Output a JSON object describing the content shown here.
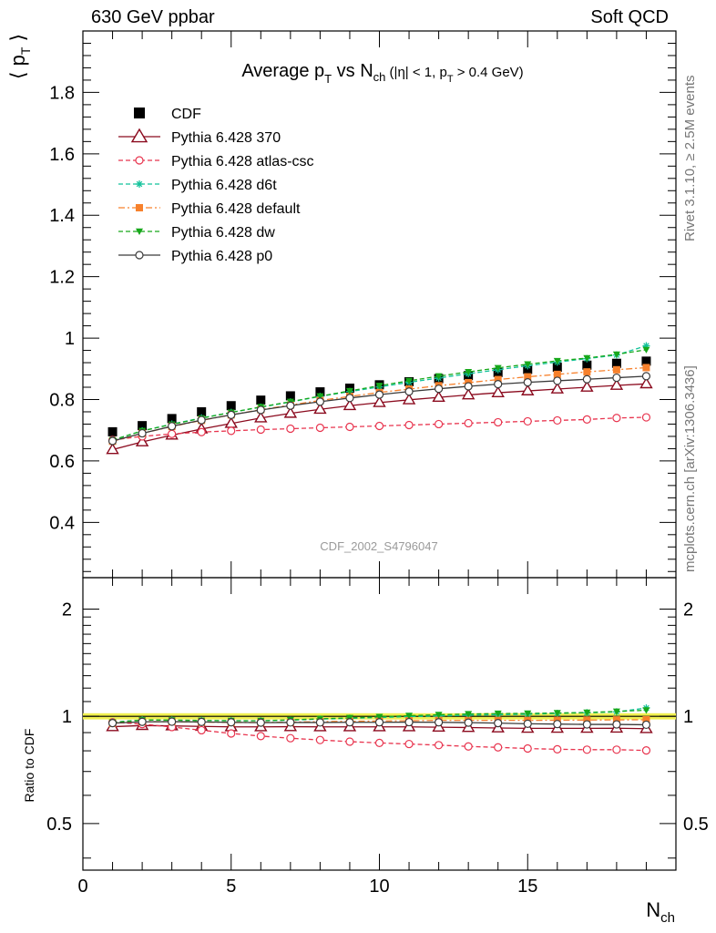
{
  "header": {
    "beam_label": "630 GeV ppbar",
    "process_label": "Soft QCD"
  },
  "side_text": {
    "rivet": "Rivet 3.1.10, ≥ 2.5M events",
    "mcplots": "mcplots.cern.ch [arXiv:1306.3436]"
  },
  "chart_data": [
    {
      "type": "scatter",
      "panel": "main",
      "title": "Average pT vs Nch (|η| < 1, pT > 0.4 GeV)",
      "ylabel": "⟨ pT ⟩",
      "watermark": "CDF_2002_S4796047",
      "xlim": [
        0,
        20
      ],
      "ylim": [
        0.22,
        2.0
      ],
      "yticks": [
        0.4,
        0.6,
        0.8,
        1,
        1.2,
        1.4,
        1.6,
        1.8
      ],
      "ytick_labels": [
        "0.4",
        "0.6",
        "0.8",
        "1",
        "1.2",
        "1.4",
        "1.6",
        "1.8"
      ],
      "legend_position": "top-left",
      "x": [
        1,
        2,
        3,
        4,
        5,
        6,
        7,
        8,
        9,
        10,
        11,
        12,
        13,
        14,
        15,
        16,
        17,
        18,
        19
      ],
      "series": [
        {
          "name": "CDF",
          "color": "#000000",
          "marker": "square-filled",
          "line": "none",
          "values": [
            0.695,
            0.715,
            0.738,
            0.76,
            0.78,
            0.798,
            0.812,
            0.825,
            0.837,
            0.848,
            0.858,
            0.868,
            0.878,
            0.888,
            0.898,
            0.905,
            0.912,
            0.918,
            0.925
          ]
        },
        {
          "name": "Pythia 6.428 370",
          "color": "#8b0a1e",
          "marker": "triangle-open",
          "line": "solid",
          "values": [
            0.637,
            0.662,
            0.684,
            0.704,
            0.722,
            0.74,
            0.755,
            0.768,
            0.78,
            0.79,
            0.799,
            0.807,
            0.815,
            0.822,
            0.828,
            0.834,
            0.84,
            0.846,
            0.851
          ]
        },
        {
          "name": "Pythia 6.428 atlas-csc",
          "color": "#e8344e",
          "marker": "circle-open",
          "line": "dashed",
          "values": [
            0.668,
            0.68,
            0.688,
            0.694,
            0.698,
            0.702,
            0.705,
            0.708,
            0.711,
            0.714,
            0.717,
            0.72,
            0.723,
            0.726,
            0.729,
            0.732,
            0.735,
            0.74,
            0.742
          ]
        },
        {
          "name": "Pythia 6.428 d6t",
          "color": "#12c29a",
          "marker": "star",
          "line": "dashed",
          "values": [
            0.668,
            0.698,
            0.72,
            0.74,
            0.758,
            0.775,
            0.792,
            0.81,
            0.826,
            0.841,
            0.856,
            0.87,
            0.884,
            0.897,
            0.91,
            0.922,
            0.933,
            0.945,
            0.975
          ]
        },
        {
          "name": "Pythia 6.428 default",
          "color": "#f7812c",
          "marker": "square-filled",
          "line": "dashdot",
          "values": [
            0.664,
            0.69,
            0.712,
            0.732,
            0.75,
            0.767,
            0.782,
            0.797,
            0.81,
            0.823,
            0.834,
            0.845,
            0.855,
            0.865,
            0.874,
            0.882,
            0.89,
            0.897,
            0.904
          ]
        },
        {
          "name": "Pythia 6.428 dw",
          "color": "#17a81a",
          "marker": "triangle-down-filled",
          "line": "dashed",
          "values": [
            0.668,
            0.698,
            0.719,
            0.739,
            0.758,
            0.776,
            0.793,
            0.811,
            0.828,
            0.845,
            0.861,
            0.876,
            0.89,
            0.903,
            0.915,
            0.926,
            0.935,
            0.947,
            0.962
          ]
        },
        {
          "name": "Pythia 6.428 p0",
          "color": "#3a3a3a",
          "marker": "circle-open",
          "line": "solid",
          "values": [
            0.665,
            0.69,
            0.713,
            0.733,
            0.75,
            0.766,
            0.78,
            0.793,
            0.805,
            0.816,
            0.826,
            0.835,
            0.843,
            0.85,
            0.856,
            0.861,
            0.866,
            0.871,
            0.876
          ]
        }
      ]
    },
    {
      "type": "scatter",
      "panel": "ratio",
      "ylabel": "Ratio to CDF",
      "xlabel": "Nch",
      "xlim": [
        0,
        20
      ],
      "ylim": [
        0.37,
        2.45
      ],
      "log_y": true,
      "xticks": [
        0,
        5,
        10,
        15
      ],
      "xtick_labels": [
        "0",
        "5",
        "10",
        "15"
      ],
      "yticks": [
        0.5,
        1,
        2
      ],
      "ytick_labels": [
        "0.5",
        "1",
        "2"
      ],
      "reference_band_color": "#f0f050",
      "x": [
        1,
        2,
        3,
        4,
        5,
        6,
        7,
        8,
        9,
        10,
        11,
        12,
        13,
        14,
        15,
        16,
        17,
        18,
        19
      ],
      "series": [
        {
          "name": "Pythia 6.428 370",
          "color": "#8b0a1e",
          "marker": "triangle-open",
          "line": "solid",
          "values": [
            0.935,
            0.942,
            0.94,
            0.937,
            0.934,
            0.934,
            0.935,
            0.934,
            0.934,
            0.934,
            0.934,
            0.932,
            0.93,
            0.927,
            0.925,
            0.925,
            0.925,
            0.926,
            0.923
          ]
        },
        {
          "name": "Pythia 6.428 atlas-csc",
          "color": "#e8344e",
          "marker": "circle-open",
          "line": "dashed",
          "values": [
            0.962,
            0.951,
            0.933,
            0.914,
            0.895,
            0.88,
            0.868,
            0.858,
            0.849,
            0.842,
            0.836,
            0.83,
            0.823,
            0.818,
            0.812,
            0.808,
            0.806,
            0.806,
            0.802
          ]
        },
        {
          "name": "Pythia 6.428 d6t",
          "color": "#12c29a",
          "marker": "star",
          "line": "dashed",
          "values": [
            0.962,
            0.977,
            0.976,
            0.974,
            0.972,
            0.971,
            0.975,
            0.982,
            0.987,
            0.992,
            0.998,
            1.002,
            1.007,
            1.01,
            1.013,
            1.019,
            1.023,
            1.029,
            1.055
          ]
        },
        {
          "name": "Pythia 6.428 default",
          "color": "#f7812c",
          "marker": "square-filled",
          "line": "dashdot",
          "values": [
            0.956,
            0.966,
            0.966,
            0.963,
            0.961,
            0.961,
            0.963,
            0.966,
            0.968,
            0.97,
            0.972,
            0.974,
            0.974,
            0.974,
            0.974,
            0.975,
            0.976,
            0.977,
            0.978
          ]
        },
        {
          "name": "Pythia 6.428 dw",
          "color": "#17a81a",
          "marker": "triangle-down-filled",
          "line": "dashed",
          "values": [
            0.962,
            0.976,
            0.975,
            0.973,
            0.972,
            0.972,
            0.977,
            0.984,
            0.99,
            0.997,
            1.004,
            1.01,
            1.015,
            1.018,
            1.019,
            1.022,
            1.025,
            1.032,
            1.04
          ]
        },
        {
          "name": "Pythia 6.428 p0",
          "color": "#3a3a3a",
          "marker": "circle-open",
          "line": "solid",
          "values": [
            0.957,
            0.965,
            0.966,
            0.964,
            0.962,
            0.96,
            0.961,
            0.961,
            0.962,
            0.962,
            0.963,
            0.962,
            0.96,
            0.957,
            0.953,
            0.951,
            0.949,
            0.949,
            0.947
          ]
        }
      ]
    }
  ]
}
